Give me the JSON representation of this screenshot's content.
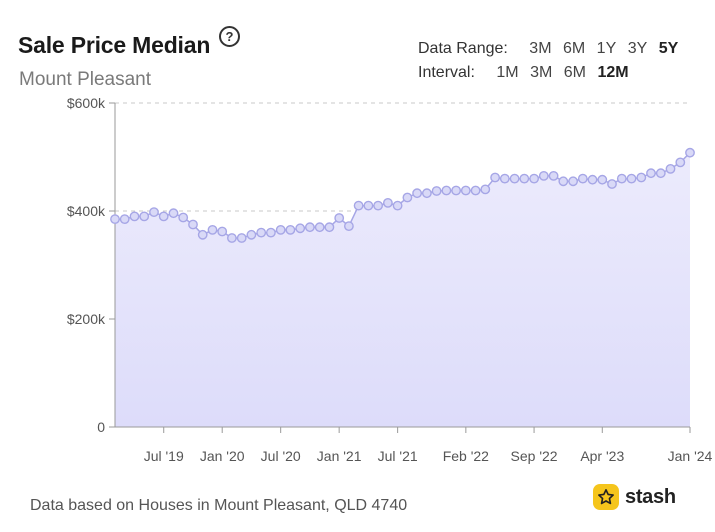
{
  "header": {
    "title": "Sale Price Median",
    "help_glyph": "?",
    "subtitle": "Mount Pleasant"
  },
  "controls": {
    "data_range_label": "Data Range:",
    "data_range_options": [
      "3M",
      "6M",
      "1Y",
      "3Y",
      "5Y"
    ],
    "data_range_selected": "5Y",
    "interval_label": "Interval:",
    "interval_options": [
      "1M",
      "3M",
      "6M",
      "12M"
    ],
    "interval_selected": "12M"
  },
  "footer": {
    "note": "Data based on Houses in Mount Pleasant, QLD 4740",
    "brand": "stash",
    "brand_icon": "star-icon"
  },
  "colors": {
    "line": "#a6a6e6",
    "marker_fill": "#d9d9f7",
    "area_top": "#ecebfc",
    "area_bottom": "#dddcfa",
    "brand": "#f5c51c"
  },
  "chart_data": {
    "type": "area",
    "title": "Sale Price Median",
    "ylim": [
      0,
      600000
    ],
    "y_ticks": [
      0,
      200000,
      400000,
      600000
    ],
    "y_tick_labels": [
      "0",
      "$200k",
      "$400k",
      "$600k"
    ],
    "xlim": [
      "2019-02",
      "2024-01"
    ],
    "x_ticks": [
      "2019-07",
      "2020-01",
      "2020-07",
      "2021-01",
      "2021-07",
      "2022-02",
      "2022-09",
      "2023-04",
      "2024-01"
    ],
    "x_tick_labels": [
      "Jul '19",
      "Jan '20",
      "Jul '20",
      "Jan '21",
      "Jul '21",
      "Feb '22",
      "Sep '22",
      "Apr '23",
      "Jan '24"
    ],
    "grid": "horizontal dashed",
    "series": [
      {
        "x": [
          "2019-02",
          "2019-03",
          "2019-04",
          "2019-05",
          "2019-06",
          "2019-07",
          "2019-08",
          "2019-09",
          "2019-10",
          "2019-11",
          "2019-12",
          "2020-01",
          "2020-02",
          "2020-03",
          "2020-04",
          "2020-05",
          "2020-06",
          "2020-07",
          "2020-08",
          "2020-09",
          "2020-10",
          "2020-11",
          "2020-12",
          "2021-01",
          "2021-02",
          "2021-03",
          "2021-04",
          "2021-05",
          "2021-06",
          "2021-07",
          "2021-08",
          "2021-09",
          "2021-10",
          "2021-11",
          "2021-12",
          "2022-01",
          "2022-02",
          "2022-03",
          "2022-04",
          "2022-05",
          "2022-06",
          "2022-07",
          "2022-08",
          "2022-09",
          "2022-10",
          "2022-11",
          "2022-12",
          "2023-01",
          "2023-02",
          "2023-03",
          "2023-04",
          "2023-05",
          "2023-06",
          "2023-07",
          "2023-08",
          "2023-09",
          "2023-10",
          "2023-11",
          "2023-12",
          "2024-01"
        ],
        "values": [
          385000,
          385000,
          390000,
          390000,
          398000,
          390000,
          396000,
          388000,
          375000,
          356000,
          365000,
          362000,
          350000,
          350000,
          356000,
          360000,
          360000,
          365000,
          365000,
          368000,
          370000,
          370000,
          370000,
          387000,
          372000,
          410000,
          410000,
          410000,
          415000,
          410000,
          425000,
          433000,
          433000,
          437000,
          438000,
          438000,
          438000,
          438000,
          440000,
          462000,
          460000,
          460000,
          460000,
          460000,
          465000,
          465000,
          455000,
          455000,
          460000,
          458000,
          458000,
          450000,
          460000,
          460000,
          462000,
          470000,
          470000,
          478000,
          490000,
          508000
        ]
      }
    ]
  }
}
